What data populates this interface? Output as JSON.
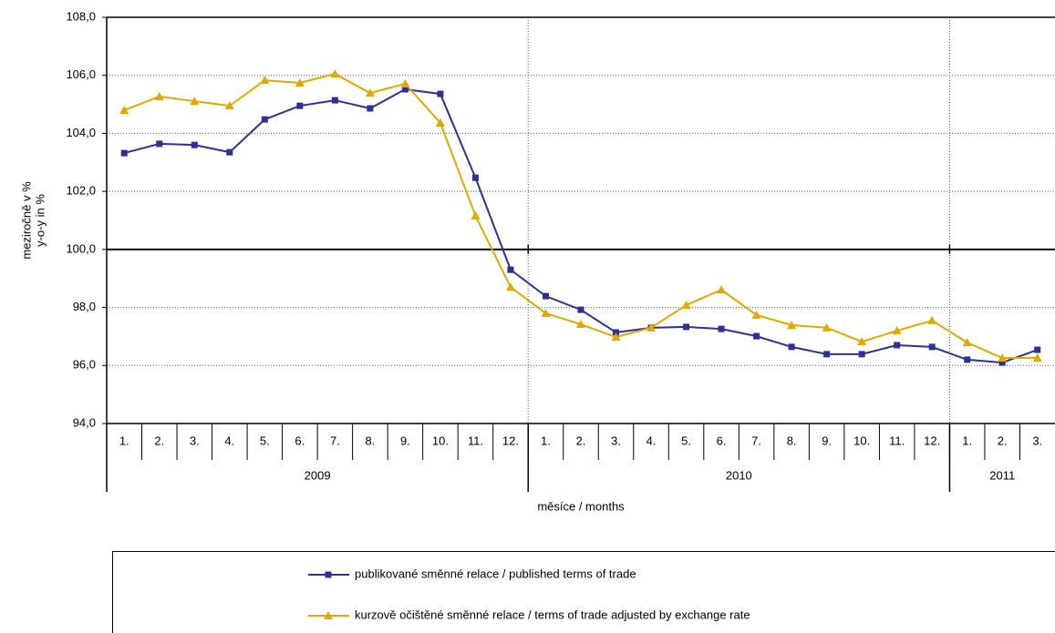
{
  "chart_data": {
    "type": "line",
    "y_label_lines": [
      "meziročně v %",
      "y-o-y in %"
    ],
    "x_label": "měsíce / months",
    "category_groups": [
      {
        "label": "2009",
        "categories": [
          "1.",
          "2.",
          "3.",
          "4.",
          "5.",
          "6.",
          "7.",
          "8.",
          "9.",
          "10.",
          "11.",
          "12."
        ]
      },
      {
        "label": "2010",
        "categories": [
          "1.",
          "2.",
          "3.",
          "4.",
          "5.",
          "6.",
          "7.",
          "8.",
          "9.",
          "10.",
          "11.",
          "12."
        ]
      },
      {
        "label": "2011",
        "categories": [
          "1.",
          "2.",
          "3."
        ]
      }
    ],
    "series": [
      {
        "name": "publikované směnné relace / published terms of trade",
        "color": "#2e3192",
        "marker": "square",
        "values": [
          103.32,
          103.64,
          103.6,
          103.35,
          104.48,
          104.95,
          105.14,
          104.86,
          105.52,
          105.36,
          102.47,
          99.3,
          98.39,
          97.92,
          97.14,
          97.3,
          97.33,
          97.26,
          97.01,
          96.64,
          96.39,
          96.39,
          96.7,
          96.64,
          96.2,
          96.1,
          96.54
        ]
      },
      {
        "name": "kurzově očištěné směnné relace / terms of trade adjusted by exchange rate",
        "color": "#e0a800",
        "marker": "triangle",
        "values": [
          104.8,
          105.27,
          105.11,
          104.95,
          105.83,
          105.74,
          106.05,
          105.39,
          105.71,
          104.36,
          101.16,
          98.7,
          97.8,
          97.42,
          96.98,
          97.3,
          98.08,
          98.61,
          97.74,
          97.39,
          97.3,
          96.82,
          97.2,
          97.55,
          96.79,
          96.26,
          96.26
        ]
      }
    ],
    "ylim": [
      94,
      108
    ],
    "yticks": [
      {
        "value": 94,
        "label": "94,0"
      },
      {
        "value": 96,
        "label": "96,0"
      },
      {
        "value": 98,
        "label": "98,0"
      },
      {
        "value": 100,
        "label": "100,0"
      },
      {
        "value": 102,
        "label": "102,0"
      },
      {
        "value": 104,
        "label": "104,0"
      },
      {
        "value": 106,
        "label": "106,0"
      },
      {
        "value": 108,
        "label": "108,0"
      }
    ],
    "baseline": 100,
    "grid": true,
    "legend": "bottom"
  }
}
